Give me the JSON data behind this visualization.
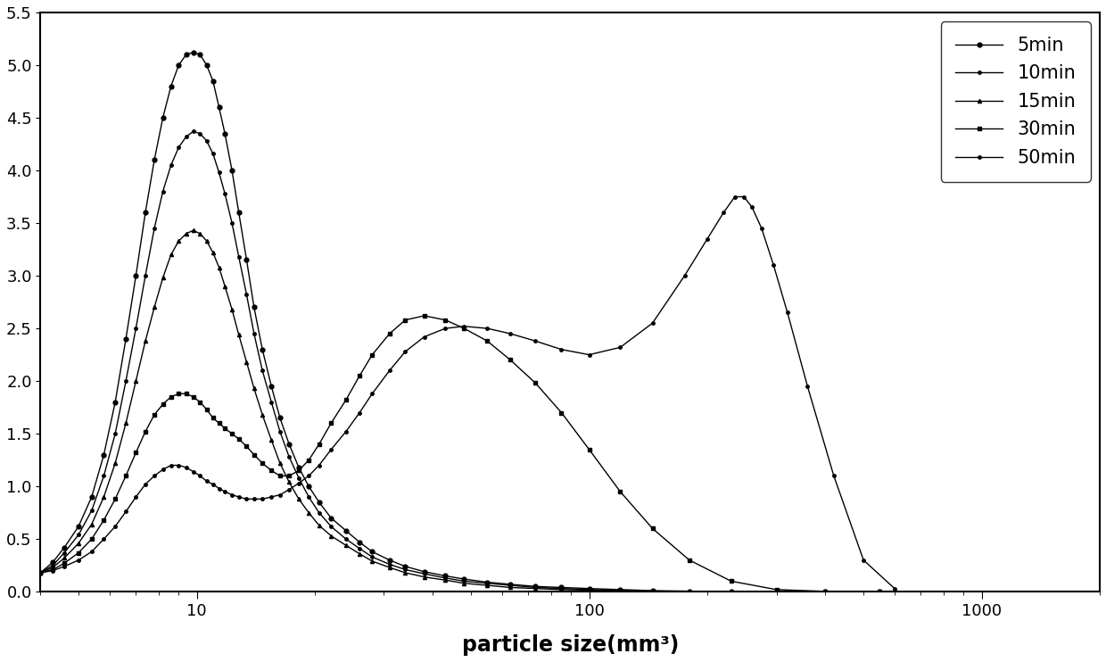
{
  "xlabel": "particle size(mm³)",
  "xlim": [
    4,
    2000
  ],
  "ylim": [
    0.0,
    5.5
  ],
  "yticks": [
    0.0,
    0.5,
    1.0,
    1.5,
    2.0,
    2.5,
    3.0,
    3.5,
    4.0,
    4.5,
    5.0,
    5.5
  ],
  "background_color": "#ffffff",
  "series": {
    "5min": {
      "x": [
        4.0,
        4.3,
        4.6,
        5.0,
        5.4,
        5.8,
        6.2,
        6.6,
        7.0,
        7.4,
        7.8,
        8.2,
        8.6,
        9.0,
        9.4,
        9.8,
        10.2,
        10.6,
        11.0,
        11.4,
        11.8,
        12.3,
        12.8,
        13.4,
        14.0,
        14.7,
        15.5,
        16.3,
        17.2,
        18.2,
        19.3,
        20.5,
        22.0,
        24.0,
        26.0,
        28.0,
        31.0,
        34.0,
        38.0,
        43.0,
        48.0,
        55.0,
        63.0,
        73.0,
        85.0,
        100.0,
        120.0,
        145.0,
        180.0,
        230.0,
        300.0,
        400.0,
        550.0
      ],
      "y": [
        0.18,
        0.28,
        0.42,
        0.62,
        0.9,
        1.3,
        1.8,
        2.4,
        3.0,
        3.6,
        4.1,
        4.5,
        4.8,
        5.0,
        5.1,
        5.12,
        5.1,
        5.0,
        4.85,
        4.6,
        4.35,
        4.0,
        3.6,
        3.15,
        2.7,
        2.3,
        1.95,
        1.65,
        1.4,
        1.18,
        1.0,
        0.85,
        0.7,
        0.58,
        0.47,
        0.38,
        0.3,
        0.24,
        0.19,
        0.15,
        0.12,
        0.09,
        0.07,
        0.05,
        0.04,
        0.03,
        0.02,
        0.01,
        0.005,
        0.002,
        0.001,
        0.0,
        0.0
      ]
    },
    "10min": {
      "x": [
        4.0,
        4.3,
        4.6,
        5.0,
        5.4,
        5.8,
        6.2,
        6.6,
        7.0,
        7.4,
        7.8,
        8.2,
        8.6,
        9.0,
        9.4,
        9.8,
        10.2,
        10.6,
        11.0,
        11.4,
        11.8,
        12.3,
        12.8,
        13.4,
        14.0,
        14.7,
        15.5,
        16.3,
        17.2,
        18.2,
        19.3,
        20.5,
        22.0,
        24.0,
        26.0,
        28.0,
        31.0,
        34.0,
        38.0,
        43.0,
        48.0,
        55.0,
        63.0,
        73.0,
        85.0,
        100.0,
        120.0,
        145.0,
        180.0,
        230.0,
        300.0,
        400.0,
        550.0
      ],
      "y": [
        0.18,
        0.25,
        0.37,
        0.54,
        0.77,
        1.1,
        1.5,
        2.0,
        2.5,
        3.0,
        3.45,
        3.8,
        4.05,
        4.22,
        4.32,
        4.37,
        4.35,
        4.28,
        4.16,
        3.98,
        3.78,
        3.5,
        3.18,
        2.82,
        2.45,
        2.1,
        1.8,
        1.52,
        1.28,
        1.08,
        0.9,
        0.75,
        0.62,
        0.5,
        0.41,
        0.33,
        0.26,
        0.21,
        0.17,
        0.13,
        0.1,
        0.08,
        0.06,
        0.04,
        0.03,
        0.02,
        0.01,
        0.005,
        0.002,
        0.001,
        0.0,
        0.0,
        0.0
      ]
    },
    "15min": {
      "x": [
        4.0,
        4.3,
        4.6,
        5.0,
        5.4,
        5.8,
        6.2,
        6.6,
        7.0,
        7.4,
        7.8,
        8.2,
        8.6,
        9.0,
        9.4,
        9.8,
        10.2,
        10.6,
        11.0,
        11.4,
        11.8,
        12.3,
        12.8,
        13.4,
        14.0,
        14.7,
        15.5,
        16.3,
        17.2,
        18.2,
        19.3,
        20.5,
        22.0,
        24.0,
        26.0,
        28.0,
        31.0,
        34.0,
        38.0,
        43.0,
        48.0,
        55.0,
        63.0,
        73.0,
        85.0,
        100.0,
        120.0,
        145.0,
        180.0,
        230.0,
        300.0,
        400.0,
        550.0
      ],
      "y": [
        0.18,
        0.23,
        0.32,
        0.46,
        0.64,
        0.9,
        1.22,
        1.6,
        2.0,
        2.38,
        2.7,
        2.98,
        3.2,
        3.33,
        3.4,
        3.43,
        3.4,
        3.33,
        3.22,
        3.08,
        2.9,
        2.68,
        2.44,
        2.18,
        1.93,
        1.68,
        1.44,
        1.22,
        1.04,
        0.88,
        0.75,
        0.63,
        0.53,
        0.44,
        0.36,
        0.29,
        0.23,
        0.18,
        0.14,
        0.11,
        0.08,
        0.06,
        0.04,
        0.03,
        0.02,
        0.015,
        0.01,
        0.005,
        0.002,
        0.001,
        0.0,
        0.0,
        0.0
      ]
    },
    "30min": {
      "x": [
        4.0,
        4.3,
        4.6,
        5.0,
        5.4,
        5.8,
        6.2,
        6.6,
        7.0,
        7.4,
        7.8,
        8.2,
        8.6,
        9.0,
        9.4,
        9.8,
        10.2,
        10.6,
        11.0,
        11.4,
        11.8,
        12.3,
        12.8,
        13.4,
        14.0,
        14.7,
        15.5,
        16.3,
        17.2,
        18.2,
        19.3,
        20.5,
        22.0,
        24.0,
        26.0,
        28.0,
        31.0,
        34.0,
        38.0,
        43.0,
        48.0,
        55.0,
        63.0,
        73.0,
        85.0,
        100.0,
        120.0,
        145.0,
        180.0,
        230.0,
        300.0,
        400.0,
        550.0
      ],
      "y": [
        0.18,
        0.21,
        0.27,
        0.37,
        0.5,
        0.68,
        0.88,
        1.1,
        1.32,
        1.52,
        1.68,
        1.78,
        1.85,
        1.88,
        1.88,
        1.85,
        1.8,
        1.73,
        1.65,
        1.6,
        1.55,
        1.5,
        1.45,
        1.38,
        1.3,
        1.22,
        1.15,
        1.1,
        1.1,
        1.15,
        1.25,
        1.4,
        1.6,
        1.82,
        2.05,
        2.25,
        2.45,
        2.58,
        2.62,
        2.58,
        2.5,
        2.38,
        2.2,
        1.98,
        1.7,
        1.35,
        0.95,
        0.6,
        0.3,
        0.1,
        0.02,
        0.003,
        0.0
      ]
    },
    "50min": {
      "x": [
        4.0,
        4.3,
        4.6,
        5.0,
        5.4,
        5.8,
        6.2,
        6.6,
        7.0,
        7.4,
        7.8,
        8.2,
        8.6,
        9.0,
        9.4,
        9.8,
        10.2,
        10.6,
        11.0,
        11.4,
        11.8,
        12.3,
        12.8,
        13.4,
        14.0,
        14.7,
        15.5,
        16.3,
        17.2,
        18.2,
        19.3,
        20.5,
        22.0,
        24.0,
        26.0,
        28.0,
        31.0,
        34.0,
        38.0,
        43.0,
        48.0,
        55.0,
        63.0,
        73.0,
        85.0,
        100.0,
        120.0,
        145.0,
        175.0,
        200.0,
        220.0,
        235.0,
        248.0,
        260.0,
        275.0,
        295.0,
        320.0,
        360.0,
        420.0,
        500.0,
        600.0
      ],
      "y": [
        0.18,
        0.2,
        0.24,
        0.3,
        0.38,
        0.5,
        0.62,
        0.76,
        0.9,
        1.02,
        1.1,
        1.16,
        1.2,
        1.2,
        1.18,
        1.14,
        1.1,
        1.05,
        1.02,
        0.98,
        0.95,
        0.92,
        0.9,
        0.88,
        0.88,
        0.88,
        0.9,
        0.92,
        0.97,
        1.03,
        1.1,
        1.2,
        1.35,
        1.52,
        1.7,
        1.88,
        2.1,
        2.28,
        2.42,
        2.5,
        2.52,
        2.5,
        2.45,
        2.38,
        2.3,
        2.25,
        2.32,
        2.55,
        3.0,
        3.35,
        3.6,
        3.75,
        3.75,
        3.65,
        3.45,
        3.1,
        2.65,
        1.95,
        1.1,
        0.3,
        0.03
      ]
    }
  }
}
